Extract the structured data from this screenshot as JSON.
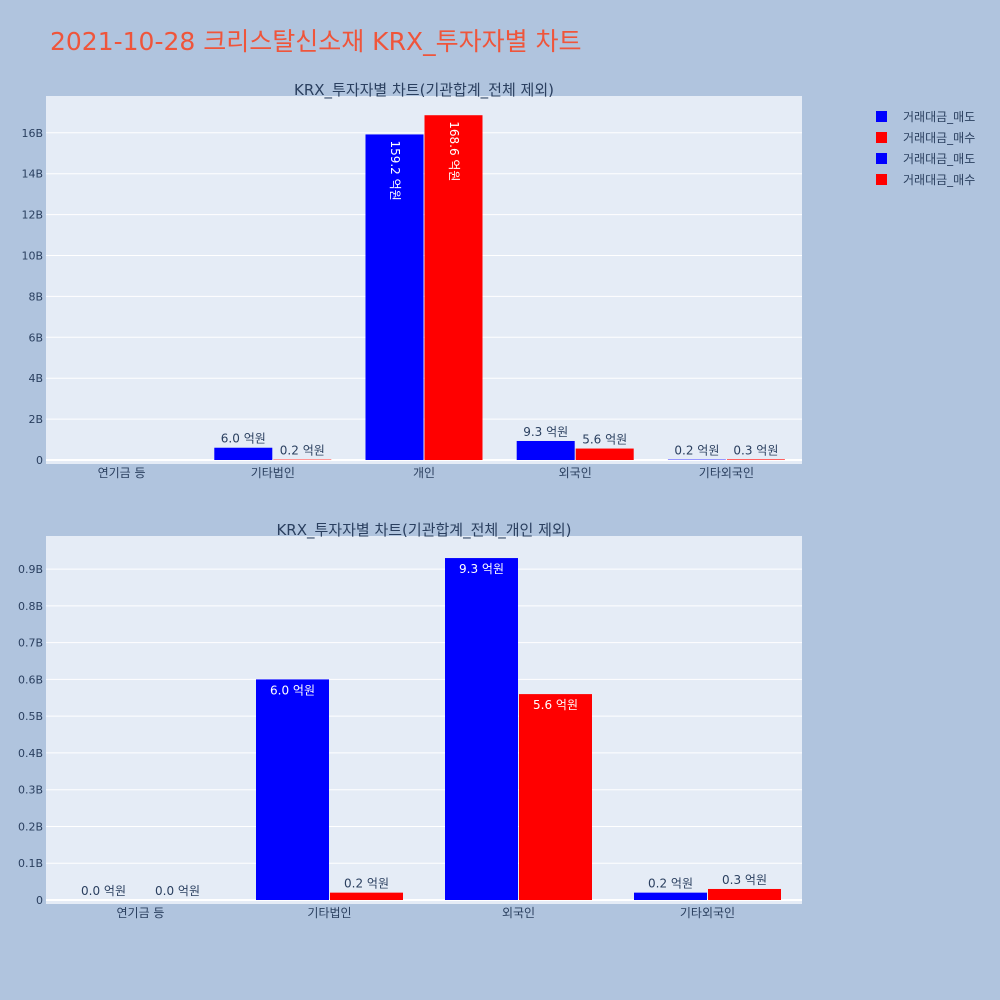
{
  "title": "2021-10-28 크리스탈신소재 KRX_투자자별 차트",
  "colors": {
    "sell": "#0000ff",
    "buy": "#ff0000",
    "plot_bg": "#e5ecf6",
    "page_bg": "#b0c4de",
    "title": "#ef553b"
  },
  "legend": [
    {
      "name": "거래대금_매도",
      "color": "#0000ff"
    },
    {
      "name": "거래대금_매수",
      "color": "#ff0000"
    },
    {
      "name": "거래대금_매도",
      "color": "#0000ff"
    },
    {
      "name": "거래대금_매수",
      "color": "#ff0000"
    }
  ],
  "chart_data": [
    {
      "type": "bar",
      "title": "KRX_투자자별 차트(기관합계_전체 제외)",
      "categories": [
        "연기금 등",
        "기타법인",
        "개인",
        "외국인",
        "기타외국인"
      ],
      "series": [
        {
          "name": "거래대금_매도",
          "values": [
            0,
            600000000,
            15920000000,
            930000000,
            20000000
          ],
          "labels": [
            "",
            "6.0 억원",
            "159.2 억원",
            "9.3 억원",
            "0.2 억원"
          ]
        },
        {
          "name": "거래대금_매수",
          "values": [
            0,
            20000000,
            16860000000,
            560000000,
            30000000
          ],
          "labels": [
            "",
            "0.2 억원",
            "168.6 억원",
            "5.6 억원",
            "0.3 억원"
          ]
        }
      ],
      "ylim": [
        0,
        17800000000
      ],
      "yticks": [
        0,
        2000000000,
        4000000000,
        6000000000,
        8000000000,
        10000000000,
        12000000000,
        14000000000,
        16000000000
      ],
      "ytick_labels": [
        "0",
        "2B",
        "4B",
        "6B",
        "8B",
        "10B",
        "12B",
        "14B",
        "16B"
      ],
      "grid": true,
      "legend": "right"
    },
    {
      "type": "bar",
      "title": "KRX_투자자별 차트(기관합계_전체_개인 제외)",
      "categories": [
        "연기금 등",
        "기타법인",
        "외국인",
        "기타외국인"
      ],
      "series": [
        {
          "name": "거래대금_매도",
          "values": [
            0,
            600000000,
            930000000,
            20000000
          ],
          "labels": [
            "0.0 억원",
            "6.0 억원",
            "9.3 억원",
            "0.2 억원"
          ]
        },
        {
          "name": "거래대금_매수",
          "values": [
            0,
            20000000,
            560000000,
            30000000
          ],
          "labels": [
            "0.0 억원",
            "0.2 억원",
            "5.6 억원",
            "0.3 억원"
          ]
        }
      ],
      "ylim": [
        0,
        990000000
      ],
      "yticks": [
        0,
        100000000,
        200000000,
        300000000,
        400000000,
        500000000,
        600000000,
        700000000,
        800000000,
        900000000
      ],
      "ytick_labels": [
        "0",
        "0.1B",
        "0.2B",
        "0.3B",
        "0.4B",
        "0.5B",
        "0.6B",
        "0.7B",
        "0.8B",
        "0.9B"
      ],
      "grid": true,
      "legend": "right"
    }
  ]
}
